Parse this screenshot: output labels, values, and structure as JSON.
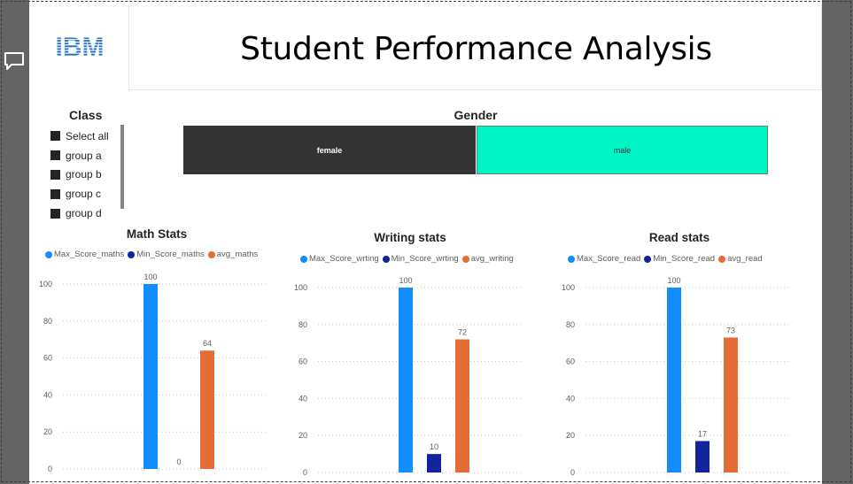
{
  "report": {
    "title": "Student Performance Analysis"
  },
  "logo": {
    "text": "IBM",
    "color": "#1f70c1"
  },
  "slicer": {
    "title": "Class",
    "items": [
      {
        "label": "Select all"
      },
      {
        "label": "group a"
      },
      {
        "label": "group b"
      },
      {
        "label": "group c"
      },
      {
        "label": "group d"
      }
    ]
  },
  "gender": {
    "title": "Gender",
    "tiles": [
      {
        "label": "female",
        "color": "#333333"
      },
      {
        "label": "male",
        "color": "#00f5c4"
      }
    ]
  },
  "colors": {
    "max": "#118dff",
    "min": "#12239e",
    "avg": "#e66c37"
  },
  "chart_data": [
    {
      "type": "bar",
      "title": "Math Stats",
      "series": [
        {
          "name": "Max_Score_maths",
          "values": [
            100
          ]
        },
        {
          "name": "Min_Score_maths",
          "values": [
            0
          ]
        },
        {
          "name": "avg_maths",
          "values": [
            64
          ]
        }
      ],
      "yticks": [
        0,
        20,
        40,
        60,
        80,
        100
      ],
      "ylim": [
        0,
        100
      ],
      "grid": true,
      "legend": "top-left"
    },
    {
      "type": "bar",
      "title": "Writing stats",
      "series": [
        {
          "name": "Max_Score_wrting",
          "values": [
            100
          ]
        },
        {
          "name": "Min_Score_wrting",
          "values": [
            10
          ]
        },
        {
          "name": "avg_writing",
          "values": [
            72
          ]
        }
      ],
      "yticks": [
        0,
        20,
        40,
        60,
        80,
        100
      ],
      "ylim": [
        0,
        100
      ],
      "grid": true,
      "legend": "top-left"
    },
    {
      "type": "bar",
      "title": "Read stats",
      "series": [
        {
          "name": "Max_Score_read",
          "values": [
            100
          ]
        },
        {
          "name": "Min_Score_read",
          "values": [
            17
          ]
        },
        {
          "name": "avg_read",
          "values": [
            73
          ]
        }
      ],
      "yticks": [
        0,
        20,
        40,
        60,
        80,
        100
      ],
      "ylim": [
        0,
        100
      ],
      "grid": true,
      "legend": "top-left"
    }
  ]
}
